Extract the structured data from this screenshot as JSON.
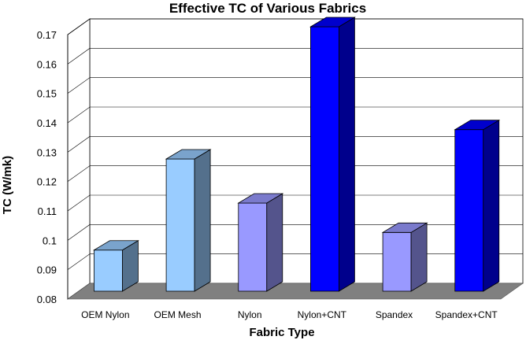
{
  "chart_data": {
    "type": "bar",
    "title": "Effective TC of Various Fabrics",
    "xlabel": "Fabric Type",
    "ylabel": "TC (W/mk)",
    "categories": [
      "OEM Nylon",
      "OEM Mesh",
      "Nylon",
      "Nylon+CNT",
      "Spandex",
      "Spandex+CNT"
    ],
    "values": [
      0.094,
      0.125,
      0.11,
      0.17,
      0.1,
      0.135
    ],
    "ylim": [
      0.08,
      0.17
    ],
    "yticks": [
      "0.08",
      "0.09",
      "0.1",
      "0.11",
      "0.12",
      "0.13",
      "0.14",
      "0.15",
      "0.16",
      "0.17"
    ],
    "grid": true,
    "three_d": true,
    "bar_colors": [
      "#99ccff",
      "#99ccff",
      "#9999ff",
      "#0000ff",
      "#9999ff",
      "#0000ff"
    ],
    "floor_color": "#808080"
  }
}
